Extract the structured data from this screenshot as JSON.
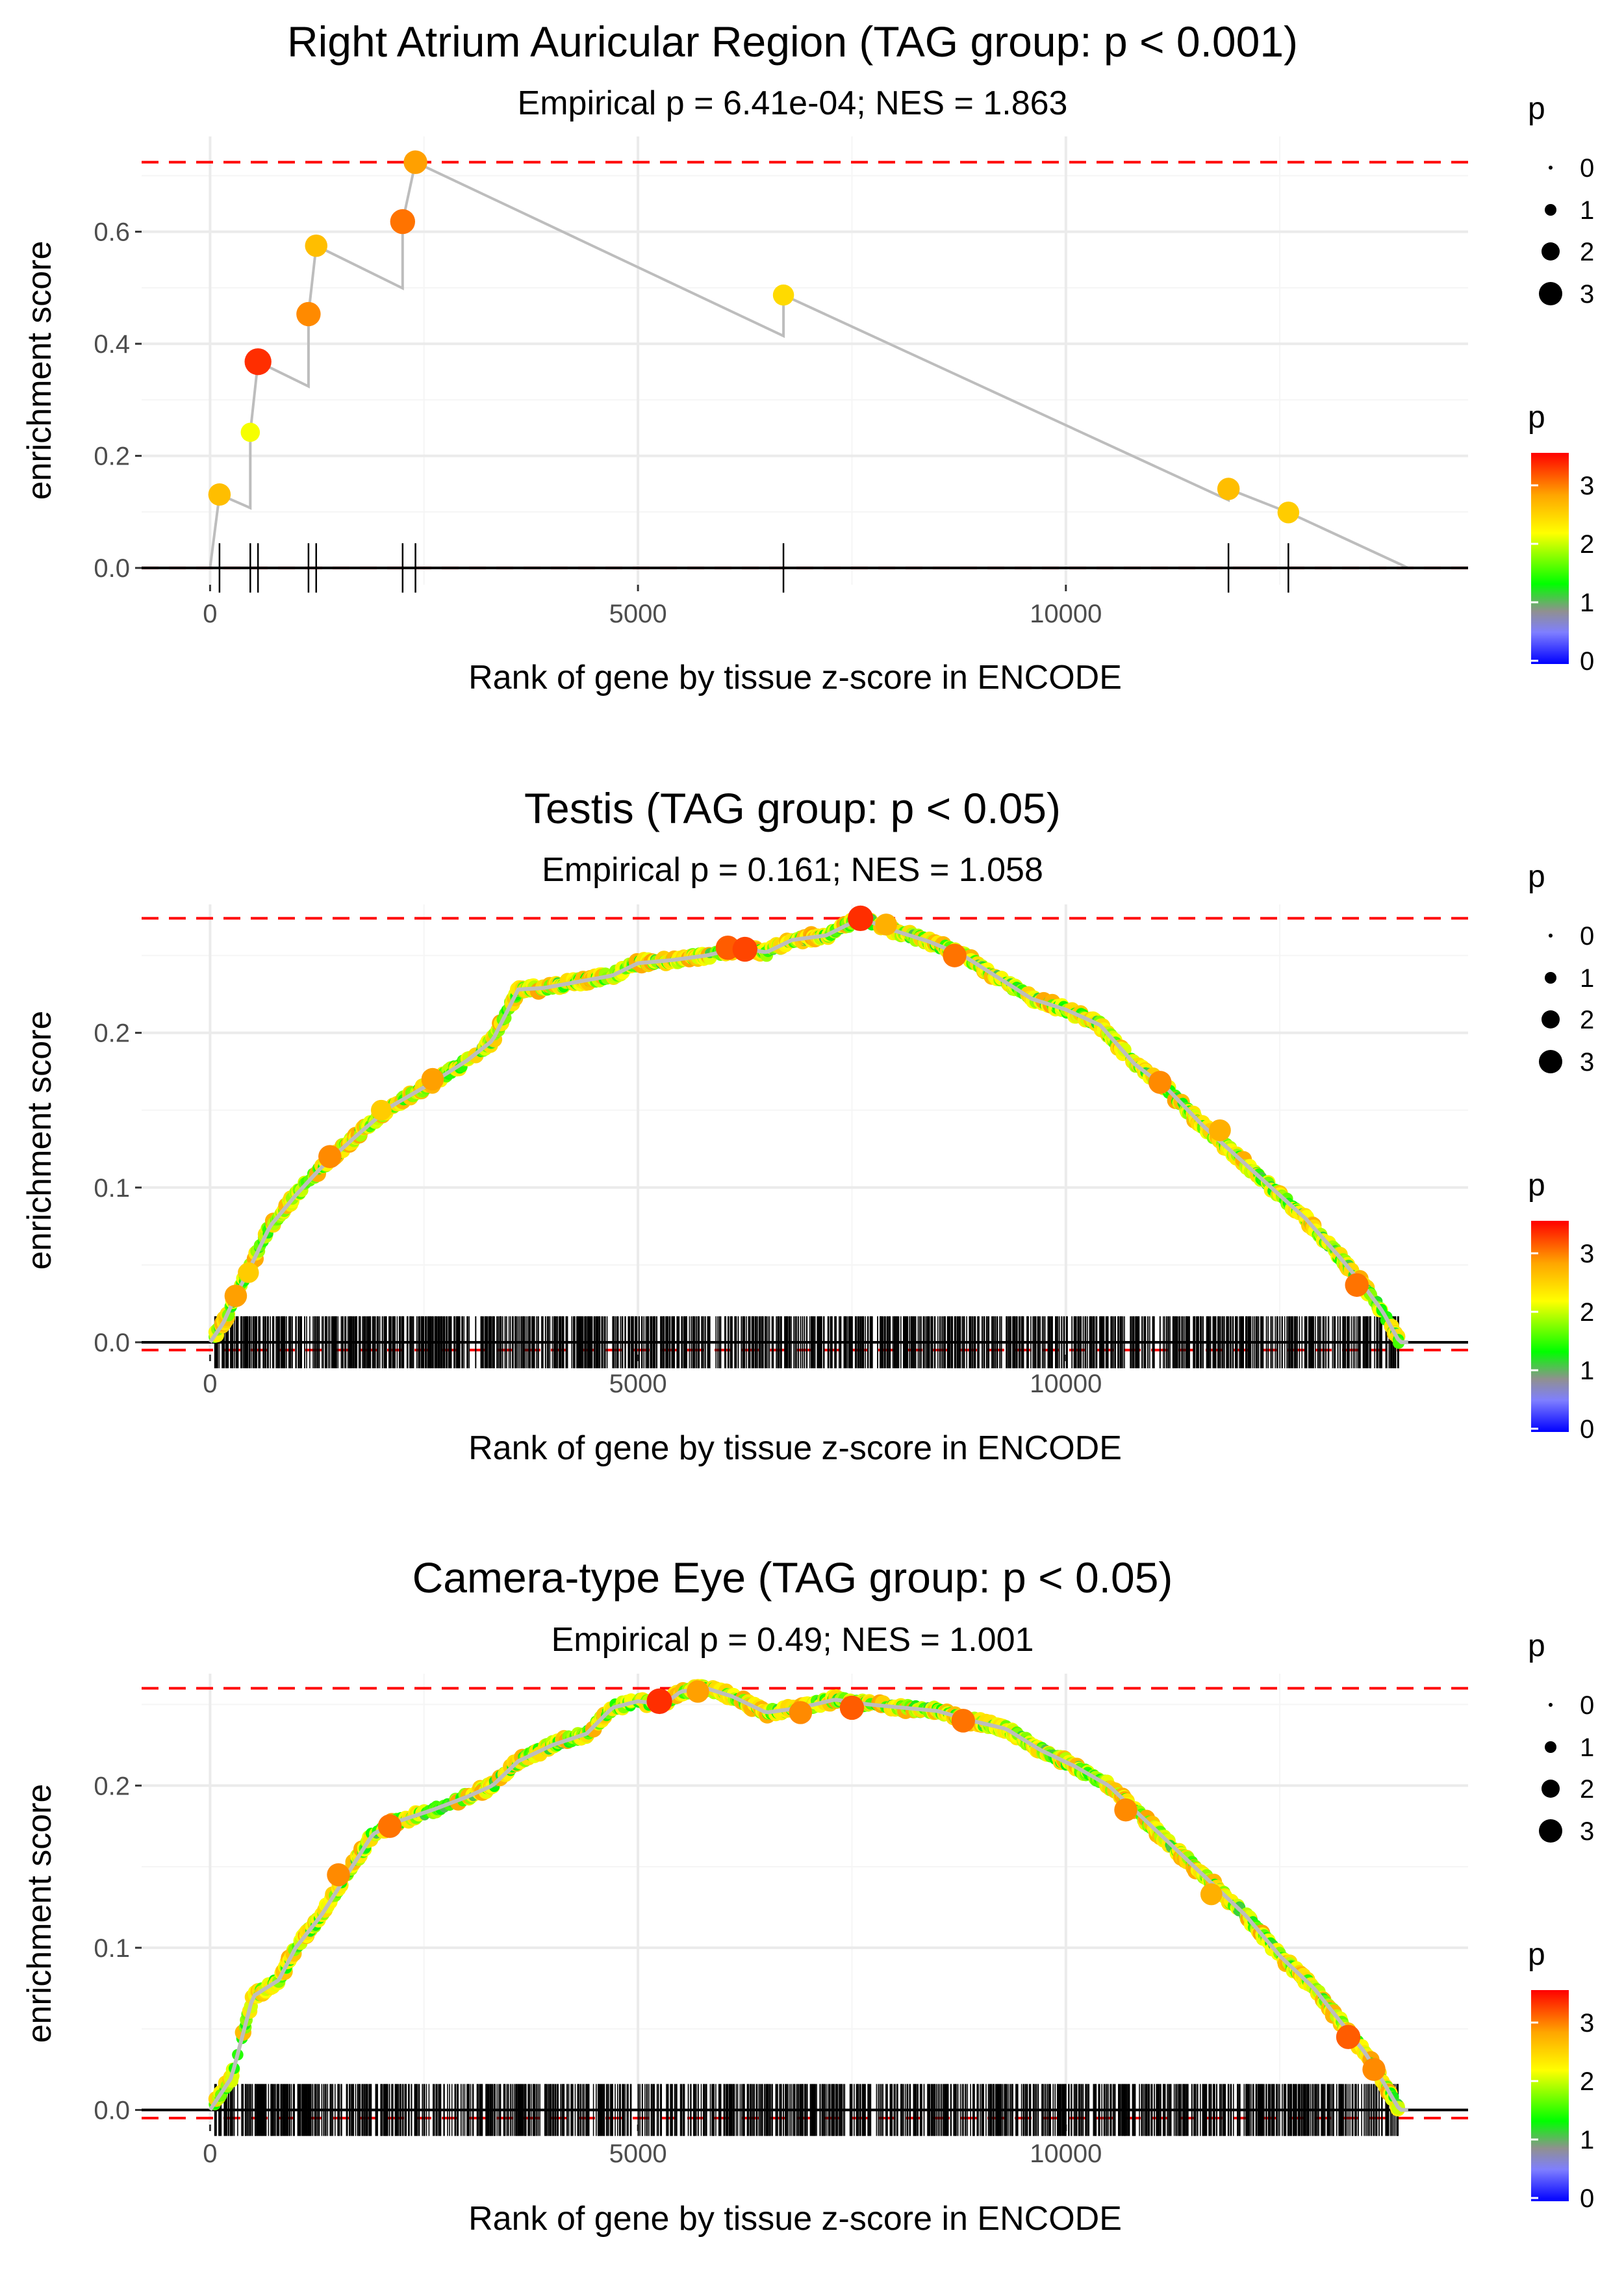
{
  "chart_data": [
    {
      "type": "line",
      "title": "Right Atrium Auricular Region (TAG group: p < 0.001)",
      "subtitle": "Empirical p = 6.41e-04; NES = 1.863",
      "xlabel": "Rank of gene by tissue z-score in ENCODE",
      "ylabel": "enrichment score",
      "xlim": [
        -800,
        14700
      ],
      "ylim": [
        -0.03,
        0.77
      ],
      "xticks": [
        0,
        5000,
        10000
      ],
      "xtick_labels": [
        "0",
        "5000",
        "10000"
      ],
      "yticks": [
        0.0,
        0.2,
        0.4,
        0.6
      ],
      "ytick_labels": [
        "0.0",
        "0.2",
        "0.4",
        "0.6"
      ],
      "max_es": 0.724,
      "min_es": 0.0,
      "mode": "sparse",
      "n_genes": 14000,
      "hits": [
        {
          "x": 110,
          "y": 0.131,
          "p": 2.7
        },
        {
          "x": 470,
          "y": 0.242,
          "p": 2.2
        },
        {
          "x": 560,
          "y": 0.368,
          "p": 3.4
        },
        {
          "x": 1150,
          "y": 0.453,
          "p": 3.0
        },
        {
          "x": 1240,
          "y": 0.575,
          "p": 2.7
        },
        {
          "x": 2250,
          "y": 0.618,
          "p": 3.1
        },
        {
          "x": 2400,
          "y": 0.724,
          "p": 2.9
        },
        {
          "x": 6700,
          "y": 0.487,
          "p": 2.5
        },
        {
          "x": 11900,
          "y": 0.141,
          "p": 2.7
        },
        {
          "x": 12600,
          "y": 0.099,
          "p": 2.6
        }
      ],
      "curve": [
        [
          0,
          0.0
        ],
        [
          110,
          0.131
        ],
        [
          470,
          0.107
        ],
        [
          470,
          0.242
        ],
        [
          560,
          0.368
        ],
        [
          1150,
          0.324
        ],
        [
          1150,
          0.453
        ],
        [
          1240,
          0.575
        ],
        [
          2250,
          0.499
        ],
        [
          2250,
          0.618
        ],
        [
          2400,
          0.724
        ],
        [
          6700,
          0.414
        ],
        [
          6700,
          0.487
        ],
        [
          11900,
          0.121
        ],
        [
          11900,
          0.141
        ],
        [
          12600,
          0.099
        ],
        [
          14000,
          0.0
        ]
      ]
    },
    {
      "type": "line",
      "title": "Testis (TAG group: p < 0.05)",
      "subtitle": "Empirical p = 0.161; NES = 1.058",
      "xlabel": "Rank of gene by tissue z-score in ENCODE",
      "ylabel": "enrichment score",
      "xlim": [
        -800,
        14700
      ],
      "ylim": [
        -0.008,
        0.283
      ],
      "xticks": [
        0,
        5000,
        10000
      ],
      "xtick_labels": [
        "0",
        "5000",
        "10000"
      ],
      "yticks": [
        0.0,
        0.1,
        0.2
      ],
      "ytick_labels": [
        "0.0",
        "0.1",
        "0.2"
      ],
      "max_es": 0.274,
      "min_es": -0.005,
      "mode": "dense",
      "n_genes": 14000,
      "hit_range": [
        50,
        13900
      ],
      "n_hits": 1350,
      "seed": 7,
      "curve_knots": [
        [
          0,
          0.0
        ],
        [
          150,
          0.012
        ],
        [
          300,
          0.03
        ],
        [
          500,
          0.052
        ],
        [
          700,
          0.075
        ],
        [
          1000,
          0.095
        ],
        [
          1300,
          0.113
        ],
        [
          1700,
          0.133
        ],
        [
          2100,
          0.152
        ],
        [
          2600,
          0.168
        ],
        [
          3000,
          0.182
        ],
        [
          3300,
          0.195
        ],
        [
          3600,
          0.228
        ],
        [
          3900,
          0.229
        ],
        [
          4300,
          0.233
        ],
        [
          4700,
          0.237
        ],
        [
          5000,
          0.245
        ],
        [
          5400,
          0.247
        ],
        [
          5800,
          0.25
        ],
        [
          6200,
          0.255
        ],
        [
          6500,
          0.252
        ],
        [
          6800,
          0.26
        ],
        [
          7200,
          0.263
        ],
        [
          7600,
          0.274
        ],
        [
          8000,
          0.266
        ],
        [
          8400,
          0.259
        ],
        [
          8800,
          0.25
        ],
        [
          9200,
          0.236
        ],
        [
          9600,
          0.222
        ],
        [
          10000,
          0.215
        ],
        [
          10400,
          0.205
        ],
        [
          10800,
          0.18
        ],
        [
          11200,
          0.163
        ],
        [
          11600,
          0.14
        ],
        [
          12000,
          0.12
        ],
        [
          12400,
          0.1
        ],
        [
          12800,
          0.08
        ],
        [
          13200,
          0.055
        ],
        [
          13500,
          0.035
        ],
        [
          13700,
          0.02
        ],
        [
          13900,
          0.0
        ]
      ],
      "highlights": [
        [
          300,
          0.03,
          2.9
        ],
        [
          450,
          0.045,
          2.6
        ],
        [
          1400,
          0.12,
          3.0
        ],
        [
          2000,
          0.15,
          2.6
        ],
        [
          2600,
          0.17,
          2.9
        ],
        [
          6050,
          0.255,
          3.2
        ],
        [
          6250,
          0.254,
          3.3
        ],
        [
          7600,
          0.274,
          3.4
        ],
        [
          7900,
          0.27,
          2.8
        ],
        [
          8700,
          0.25,
          3.1
        ],
        [
          11100,
          0.168,
          3.0
        ],
        [
          11800,
          0.137,
          2.8
        ],
        [
          13400,
          0.037,
          3.1
        ]
      ]
    },
    {
      "type": "line",
      "title": "Camera-type Eye (TAG group: p < 0.05)",
      "subtitle": "Empirical p = 0.49; NES = 1.001",
      "xlabel": "Rank of gene by tissue z-score in ENCODE",
      "ylabel": "enrichment score",
      "xlim": [
        -800,
        14700
      ],
      "ylim": [
        -0.009,
        0.269
      ],
      "xticks": [
        0,
        5000,
        10000
      ],
      "xtick_labels": [
        "0",
        "5000",
        "10000"
      ],
      "yticks": [
        0.0,
        0.1,
        0.2
      ],
      "ytick_labels": [
        "0.0",
        "0.1",
        "0.2"
      ],
      "max_es": 0.26,
      "min_es": -0.005,
      "mode": "dense",
      "n_genes": 14000,
      "hit_range": [
        50,
        13900
      ],
      "n_hits": 1300,
      "seed": 23,
      "curve_knots": [
        [
          0,
          0.0
        ],
        [
          100,
          0.008
        ],
        [
          250,
          0.02
        ],
        [
          350,
          0.04
        ],
        [
          500,
          0.07
        ],
        [
          800,
          0.08
        ],
        [
          1000,
          0.1
        ],
        [
          1300,
          0.12
        ],
        [
          1600,
          0.145
        ],
        [
          1900,
          0.17
        ],
        [
          2200,
          0.178
        ],
        [
          2600,
          0.185
        ],
        [
          3000,
          0.193
        ],
        [
          3300,
          0.2
        ],
        [
          3600,
          0.215
        ],
        [
          4000,
          0.225
        ],
        [
          4400,
          0.232
        ],
        [
          4700,
          0.248
        ],
        [
          5000,
          0.252
        ],
        [
          5300,
          0.25
        ],
        [
          5500,
          0.258
        ],
        [
          5800,
          0.26
        ],
        [
          6100,
          0.255
        ],
        [
          6500,
          0.245
        ],
        [
          6900,
          0.248
        ],
        [
          7300,
          0.253
        ],
        [
          7700,
          0.25
        ],
        [
          8100,
          0.248
        ],
        [
          8500,
          0.246
        ],
        [
          8900,
          0.24
        ],
        [
          9300,
          0.235
        ],
        [
          9700,
          0.222
        ],
        [
          10100,
          0.212
        ],
        [
          10500,
          0.2
        ],
        [
          10900,
          0.18
        ],
        [
          11300,
          0.16
        ],
        [
          11700,
          0.14
        ],
        [
          12100,
          0.12
        ],
        [
          12500,
          0.095
        ],
        [
          12900,
          0.075
        ],
        [
          13200,
          0.055
        ],
        [
          13500,
          0.035
        ],
        [
          13700,
          0.018
        ],
        [
          13900,
          0.0
        ]
      ],
      "highlights": [
        [
          1500,
          0.145,
          3.0
        ],
        [
          2100,
          0.175,
          3.1
        ],
        [
          5250,
          0.252,
          3.4
        ],
        [
          5700,
          0.258,
          2.9
        ],
        [
          6900,
          0.245,
          3.0
        ],
        [
          7500,
          0.248,
          3.2
        ],
        [
          8800,
          0.24,
          3.1
        ],
        [
          10700,
          0.185,
          3.0
        ],
        [
          11700,
          0.133,
          2.8
        ],
        [
          13300,
          0.045,
          3.2
        ],
        [
          13600,
          0.025,
          3.0
        ]
      ]
    }
  ],
  "legend": {
    "size_title": "p",
    "size_labels": [
      "0",
      "1",
      "2",
      "3"
    ],
    "color_title": "p",
    "color_labels": [
      "3",
      "2",
      "1",
      "0"
    ],
    "color_max": 3.6
  },
  "colors": {
    "curve": "#bdbdbd",
    "limit_line": "#ff0000",
    "grid": "#ebebeb",
    "axis": "#000000",
    "gradient": [
      "#0000ff",
      "#7f7fff",
      "#909090",
      "#00ff00",
      "#ffff00",
      "#ffa500",
      "#ff0000"
    ]
  }
}
